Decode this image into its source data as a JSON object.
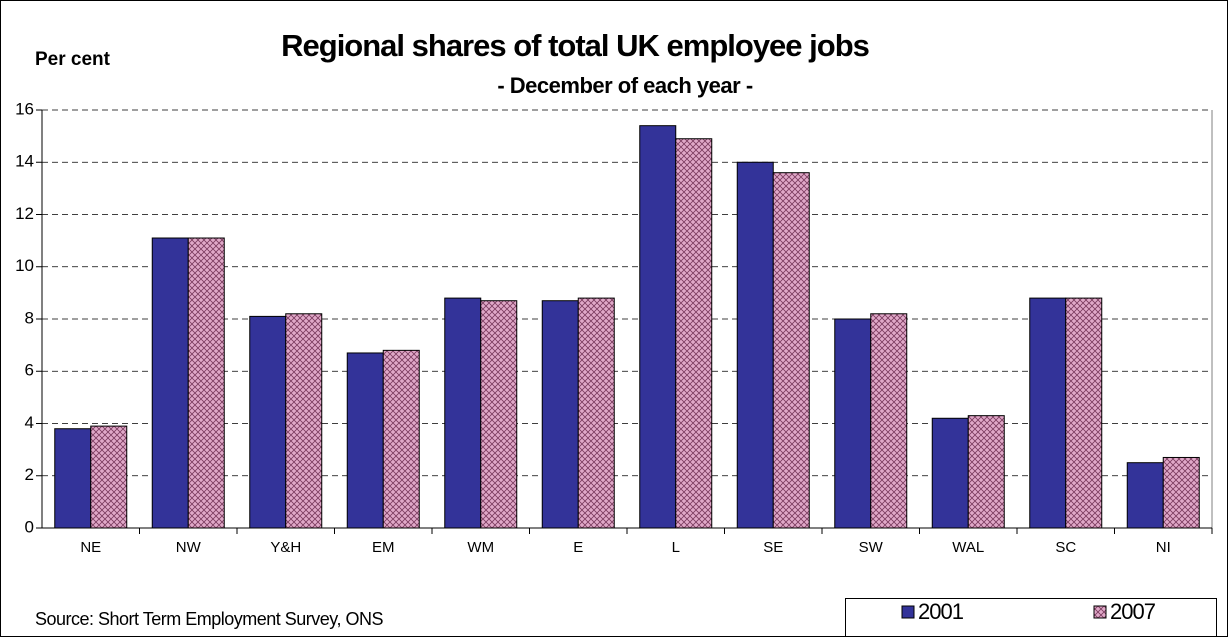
{
  "chart_data": {
    "type": "bar",
    "title": "Regional shares of total UK employee jobs",
    "subtitle": "- December of each year -",
    "y_label": "Per cent",
    "source": "Source: Short Term Employment Survey, ONS",
    "categories": [
      "NE",
      "NW",
      "Y&H",
      "EM",
      "WM",
      "E",
      "L",
      "SE",
      "SW",
      "WAL",
      "SC",
      "NI"
    ],
    "series": [
      {
        "name": "2001",
        "color": "#333399",
        "values": [
          3.8,
          11.1,
          8.1,
          6.7,
          8.8,
          8.7,
          15.4,
          14.0,
          8.0,
          4.2,
          8.8,
          2.5
        ]
      },
      {
        "name": "2007",
        "color": "#e0a8c8",
        "hatch": true,
        "values": [
          3.9,
          11.1,
          8.2,
          6.8,
          8.7,
          8.8,
          14.9,
          13.6,
          8.2,
          4.3,
          8.8,
          2.7
        ]
      }
    ],
    "ylim": [
      0,
      16
    ],
    "yticks": [
      0,
      2,
      4,
      6,
      8,
      10,
      12,
      14,
      16
    ],
    "grid": true,
    "legend": "bottom-right"
  }
}
